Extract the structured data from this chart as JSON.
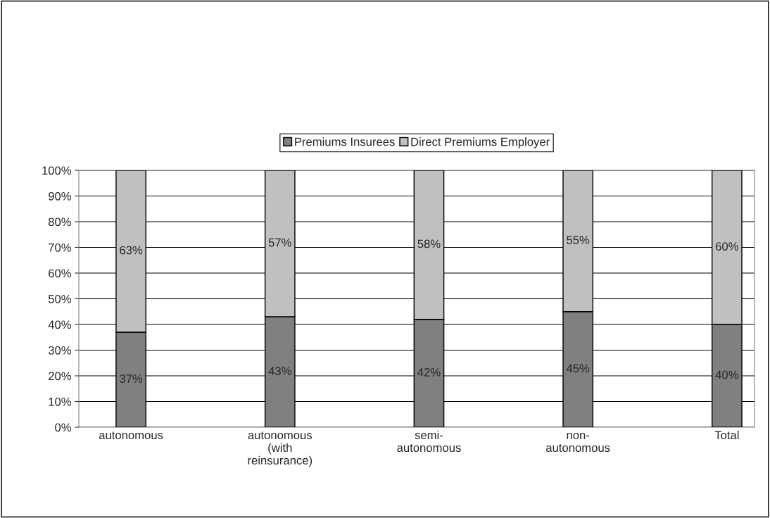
{
  "chart_data": {
    "type": "bar",
    "stacked": true,
    "categories": [
      "autonomous",
      "autonomous\n(with\nreinsurance)",
      "semi-\nautonomous",
      "non-\nautonomous",
      "Total"
    ],
    "series": [
      {
        "name": "Premiums Insurees",
        "color": "#808080",
        "values": [
          37,
          43,
          42,
          45,
          40
        ],
        "value_labels": [
          "37%",
          "43%",
          "42%",
          "45%",
          "40%"
        ]
      },
      {
        "name": "Direct Premiums Employer",
        "color": "#c0c0c0",
        "values": [
          63,
          57,
          58,
          55,
          60
        ],
        "value_labels": [
          "63%",
          "57%",
          "58%",
          "55%",
          "60%"
        ]
      }
    ],
    "ylim": [
      0,
      100
    ],
    "yticks": [
      {
        "value": 0,
        "label": "0%"
      },
      {
        "value": 10,
        "label": "10%"
      },
      {
        "value": 20,
        "label": "20%"
      },
      {
        "value": 30,
        "label": "30%"
      },
      {
        "value": 40,
        "label": "40%"
      },
      {
        "value": 50,
        "label": "50%"
      },
      {
        "value": 60,
        "label": "60%"
      },
      {
        "value": 70,
        "label": "70%"
      },
      {
        "value": 80,
        "label": "80%"
      },
      {
        "value": 90,
        "label": "90%"
      },
      {
        "value": 100,
        "label": "100%"
      }
    ],
    "grid": "y",
    "legend": "top"
  }
}
